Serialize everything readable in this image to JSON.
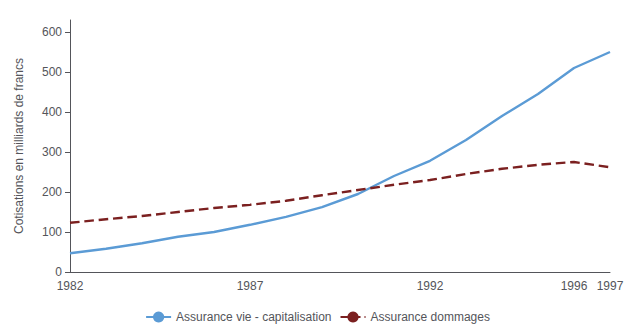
{
  "chart_data": {
    "type": "line",
    "ylabel": "Cotisations en milliards de francs",
    "categories": [
      "1982",
      null,
      null,
      null,
      null,
      "1987",
      null,
      null,
      null,
      null,
      "1992",
      null,
      null,
      null,
      "1996",
      "1997"
    ],
    "series": [
      {
        "name": "Assurance vie - capitalisation",
        "color": "#5B9BD5",
        "line_style": "solid",
        "values": [
          47,
          58,
          72,
          88,
          100,
          118,
          138,
          162,
          195,
          240,
          278,
          330,
          390,
          445,
          510,
          550
        ]
      },
      {
        "name": "Assurance dommages",
        "color": "#7B2020",
        "line_style": "dashed",
        "values": [
          123,
          132,
          140,
          150,
          160,
          168,
          178,
          192,
          205,
          218,
          230,
          245,
          258,
          268,
          275,
          262
        ]
      }
    ],
    "ylim": [
      0,
      630
    ],
    "yticks": [
      0,
      100,
      200,
      300,
      400,
      500,
      600
    ],
    "grid": false,
    "legend": "bottom"
  }
}
